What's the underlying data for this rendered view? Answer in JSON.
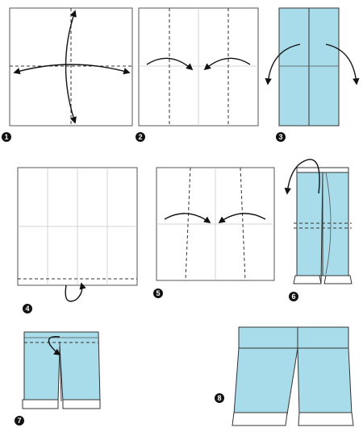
{
  "colors": {
    "paper_blue": "#a8dcea",
    "paper_white": "#ffffff",
    "outline": "#333333",
    "badge": "#111111"
  },
  "steps": [
    {
      "number": "1"
    },
    {
      "number": "2"
    },
    {
      "number": "3"
    },
    {
      "number": "4"
    },
    {
      "number": "5"
    },
    {
      "number": "6"
    },
    {
      "number": "7"
    },
    {
      "number": "8"
    }
  ]
}
